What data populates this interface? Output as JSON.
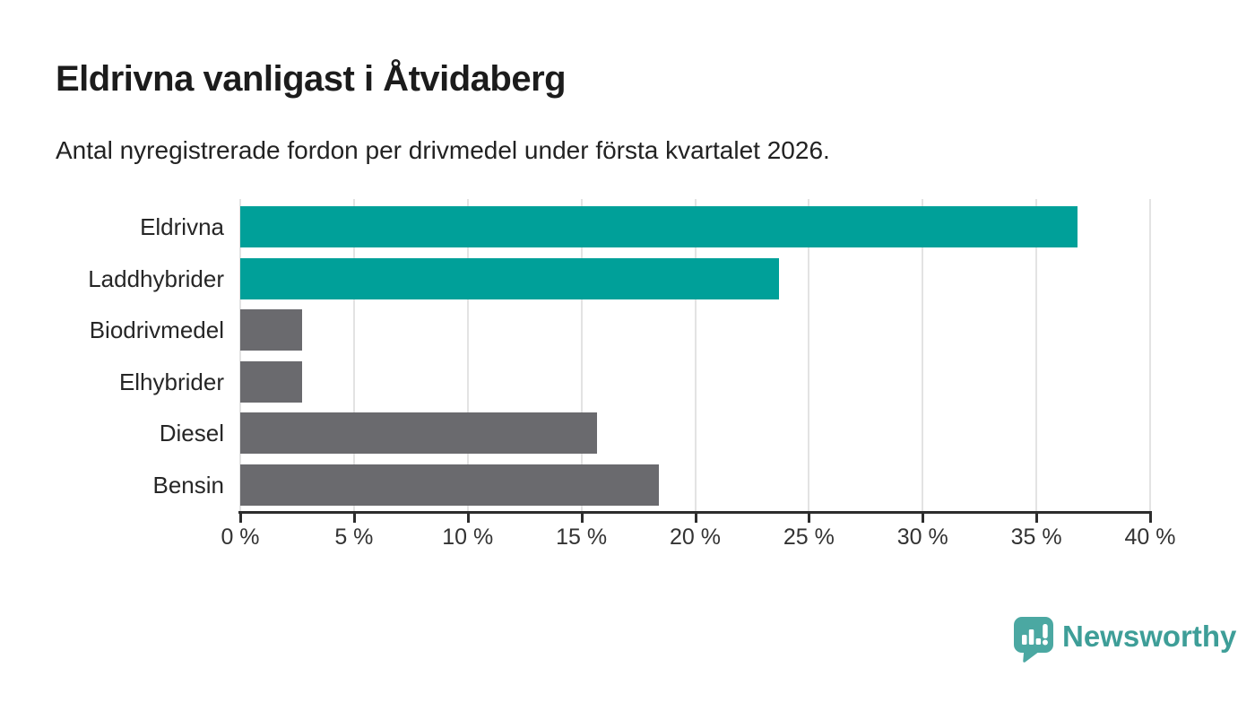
{
  "header": {
    "title": "Eldrivna vanligast i Åtvidaberg",
    "subtitle": "Antal nyregistrerade fordon per drivmedel under första kvartalet 2026."
  },
  "chart_data": {
    "type": "bar",
    "orientation": "horizontal",
    "title": "Eldrivna vanligast i Åtvidaberg",
    "subtitle": "Antal nyregistrerade fordon per drivmedel under första kvartalet 2026.",
    "categories": [
      "Eldrivna",
      "Laddhybrider",
      "Biodrivmedel",
      "Elhybrider",
      "Diesel",
      "Bensin"
    ],
    "values": [
      36.8,
      23.7,
      2.7,
      2.7,
      15.7,
      18.4
    ],
    "unit": "%",
    "bar_colors": [
      "#00A099",
      "#00A099",
      "#6A6A6E",
      "#6A6A6E",
      "#6A6A6E",
      "#6A6A6E"
    ],
    "highlight_color": "#00A099",
    "base_color": "#6A6A6E",
    "xlim": [
      0,
      40
    ],
    "x_ticks": [
      0,
      5,
      10,
      15,
      20,
      25,
      30,
      35,
      40
    ],
    "x_tick_labels": [
      "0 %",
      "5 %",
      "10 %",
      "15 %",
      "20 %",
      "25 %",
      "30 %",
      "35 %",
      "40 %"
    ],
    "grid": "vertical-gridlines-on",
    "legend": "none",
    "grid_color": "#e3e3e3",
    "axis_color": "#2d2d2d"
  },
  "footer": {
    "brand": "Newsworthy",
    "brand_color": "#3e9e98",
    "logo_icon": "newsworthy-bubble-barchart-icon",
    "logo_color": "#4BA8A2"
  }
}
